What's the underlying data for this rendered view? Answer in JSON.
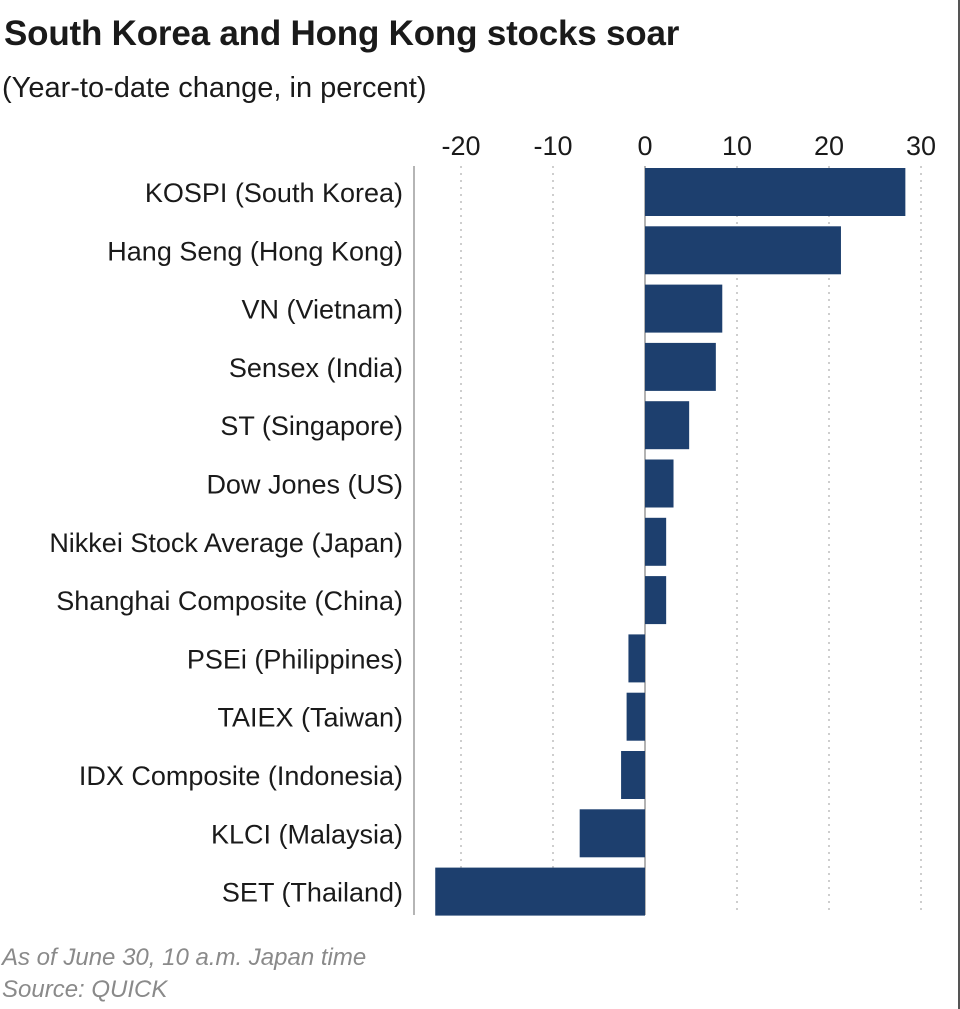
{
  "header": {
    "title": "South Korea and Hong Kong stocks soar",
    "subtitle": "(Year-to-date change, in percent)"
  },
  "footer": {
    "note": "As of June 30, 10 a.m. Japan time",
    "source": "Source: QUICK"
  },
  "chart_data": {
    "type": "bar",
    "orientation": "horizontal",
    "title": "South Korea and Hong Kong stocks soar",
    "subtitle": "(Year-to-date change, in percent)",
    "xlim": [
      -22.5,
      31
    ],
    "xticks": [
      -20,
      -10,
      0,
      10,
      20,
      30
    ],
    "xtick_labels": [
      "-20",
      "-10",
      "0",
      "10",
      "20",
      "30"
    ],
    "grid": "vertical dotted",
    "bar_color": "#1d3f6e",
    "categories": [
      "KOSPI (South Korea)",
      "Hang Seng (Hong Kong)",
      "VN (Vietnam)",
      "Sensex (India)",
      "ST (Singapore)",
      "Dow Jones (US)",
      "Nikkei Stock Average (Japan)",
      "Shanghai Composite (China)",
      "PSEi (Philippines)",
      "TAIEX (Taiwan)",
      "IDX Composite (Indonesia)",
      "KLCI (Malaysia)",
      "SET (Thailand)"
    ],
    "values": [
      28.3,
      21.3,
      8.4,
      7.7,
      4.8,
      3.1,
      2.3,
      2.3,
      -1.8,
      -2.0,
      -2.6,
      -7.1,
      -22.8
    ]
  }
}
